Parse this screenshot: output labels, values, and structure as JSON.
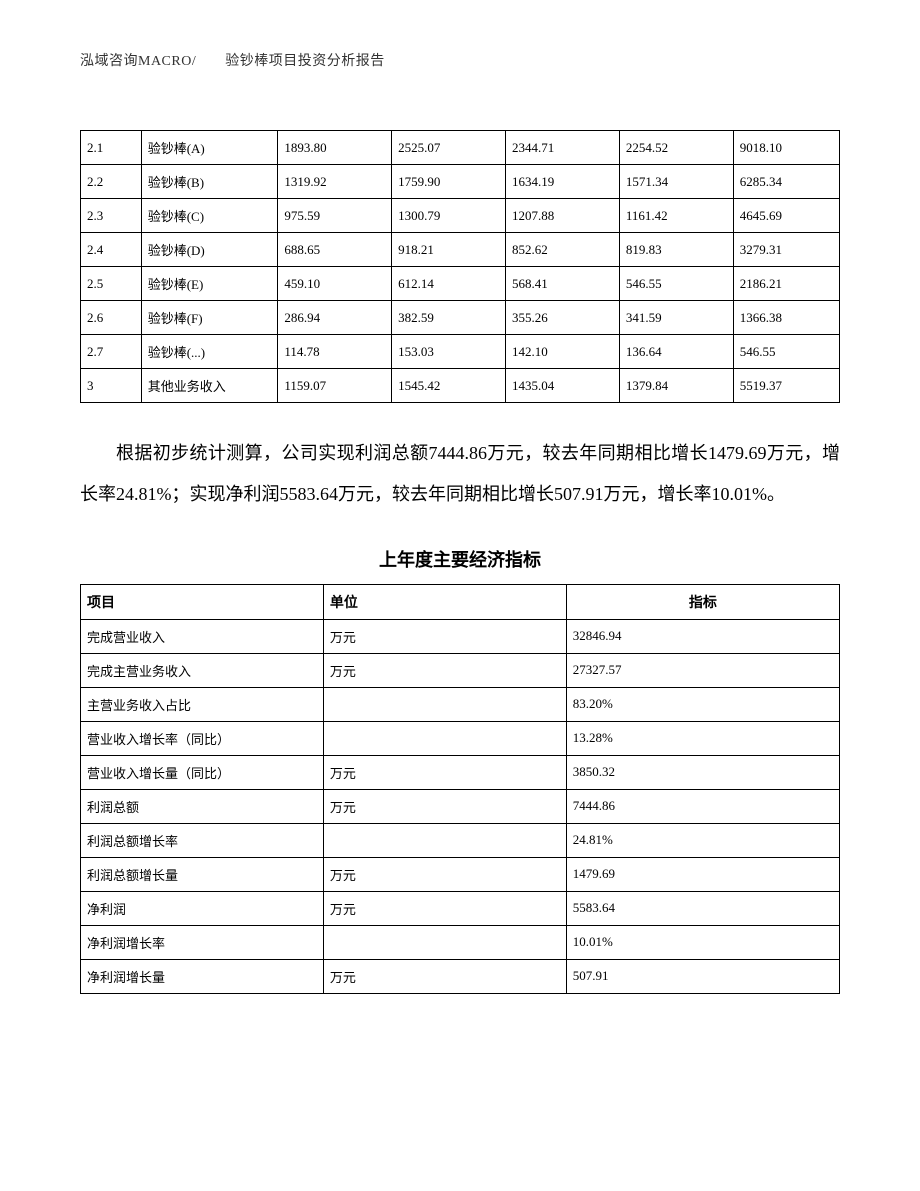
{
  "header": {
    "text": "泓域咨询MACRO/　　验钞棒项目投资分析报告"
  },
  "table1": {
    "rows": [
      [
        "2.1",
        "验钞棒(A)",
        "1893.80",
        "2525.07",
        "2344.71",
        "2254.52",
        "9018.10"
      ],
      [
        "2.2",
        "验钞棒(B)",
        "1319.92",
        "1759.90",
        "1634.19",
        "1571.34",
        "6285.34"
      ],
      [
        "2.3",
        "验钞棒(C)",
        "975.59",
        "1300.79",
        "1207.88",
        "1161.42",
        "4645.69"
      ],
      [
        "2.4",
        "验钞棒(D)",
        "688.65",
        "918.21",
        "852.62",
        "819.83",
        "3279.31"
      ],
      [
        "2.5",
        "验钞棒(E)",
        "459.10",
        "612.14",
        "568.41",
        "546.55",
        "2186.21"
      ],
      [
        "2.6",
        "验钞棒(F)",
        "286.94",
        "382.59",
        "355.26",
        "341.59",
        "1366.38"
      ],
      [
        "2.7",
        "验钞棒(...)",
        "114.78",
        "153.03",
        "142.10",
        "136.64",
        "546.55"
      ],
      [
        "3",
        "其他业务收入",
        "1159.07",
        "1545.42",
        "1435.04",
        "1379.84",
        "5519.37"
      ]
    ],
    "col_widths": [
      "8%",
      "18%",
      "15%",
      "15%",
      "15%",
      "15%",
      "14%"
    ],
    "border_color": "#000000",
    "font_size": 13,
    "text_color": "#000000"
  },
  "paragraph": {
    "text": "根据初步统计测算，公司实现利润总额7444.86万元，较去年同期相比增长1479.69万元，增长率24.81%；实现净利润5583.64万元，较去年同期相比增长507.91万元，增长率10.01%。",
    "font_size": 18,
    "line_height": 2.3,
    "text_indent_em": 2
  },
  "table2": {
    "title": "上年度主要经济指标",
    "title_fontsize": 18,
    "columns": [
      "项目",
      "单位",
      "指标"
    ],
    "rows": [
      [
        "完成营业收入",
        "万元",
        "32846.94"
      ],
      [
        "完成主营业务收入",
        "万元",
        "27327.57"
      ],
      [
        "主营业务收入占比",
        "",
        "83.20%"
      ],
      [
        "营业收入增长率（同比）",
        "",
        "13.28%"
      ],
      [
        "营业收入增长量（同比）",
        "万元",
        "3850.32"
      ],
      [
        "利润总额",
        "万元",
        "7444.86"
      ],
      [
        "利润总额增长率",
        "",
        "24.81%"
      ],
      [
        "利润总额增长量",
        "万元",
        "1479.69"
      ],
      [
        "净利润",
        "万元",
        "5583.64"
      ],
      [
        "净利润增长率",
        "",
        "10.01%"
      ],
      [
        "净利润增长量",
        "万元",
        "507.91"
      ]
    ],
    "col_widths": [
      "32%",
      "32%",
      "36%"
    ],
    "border_color": "#000000",
    "font_size": 13,
    "text_color": "#000000"
  },
  "colors": {
    "background": "#ffffff",
    "text": "#000000",
    "header_text": "#333333",
    "border": "#000000"
  }
}
